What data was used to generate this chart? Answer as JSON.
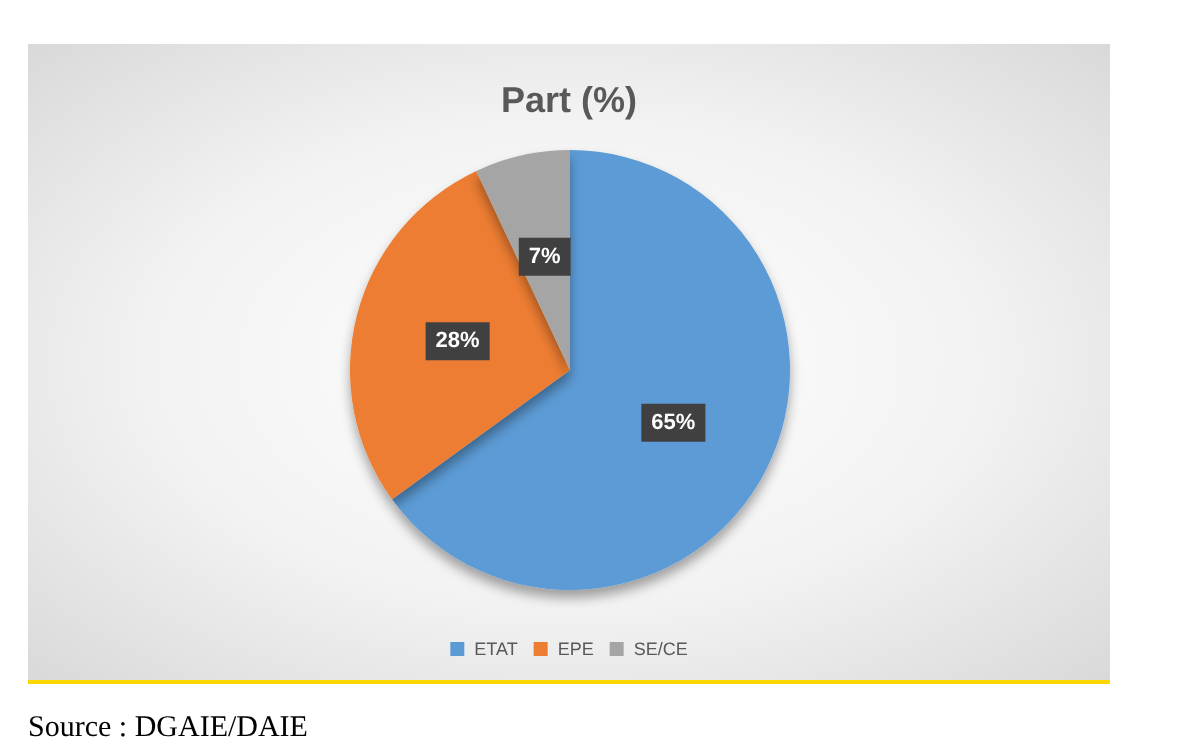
{
  "chart_data": {
    "type": "pie",
    "title": "Part (%)",
    "categories": [
      "ETAT",
      "EPE",
      "SE/CE"
    ],
    "values": [
      65,
      28,
      7
    ],
    "colors": [
      "#5b9bd5",
      "#ed7d31",
      "#a5a5a5"
    ],
    "value_labels": [
      "65%",
      "28%",
      "7%"
    ],
    "legend": "bottom",
    "annotations": [
      "Source : DGAIE/DAIE"
    ]
  }
}
